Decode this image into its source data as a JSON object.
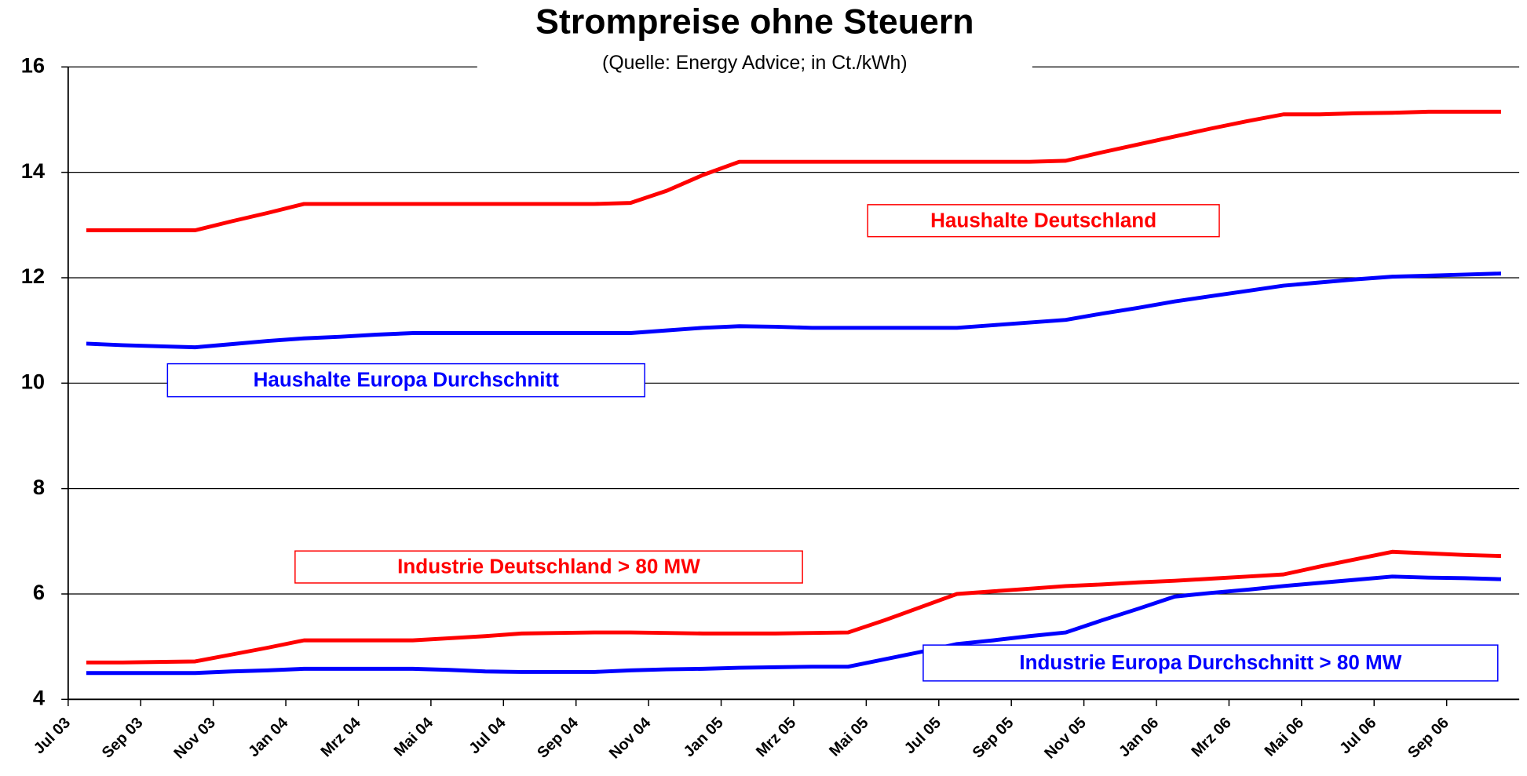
{
  "chart_data": {
    "type": "line",
    "title": "Strompreise ohne Steuern",
    "subtitle": "(Quelle: Energy Advice; in Ct./kWh)",
    "categories": [
      "Jul 03",
      null,
      "Sep 03",
      null,
      "Nov 03",
      null,
      "Jan 04",
      null,
      "Mrz 04",
      null,
      "Mai 04",
      null,
      "Jul 04",
      null,
      "Sep 04",
      null,
      "Nov 04",
      null,
      "Jan 05",
      null,
      "Mrz 05",
      null,
      "Mai 05",
      null,
      "Jul 05",
      null,
      "Sep 05",
      null,
      "Nov 05",
      null,
      "Jan 06",
      null,
      "Mrz 06",
      null,
      "Mai 06",
      null,
      "Jul 06",
      null,
      "Sep 06",
      null
    ],
    "ylim": [
      4,
      16
    ],
    "yticks": [
      4,
      6,
      8,
      10,
      12,
      14,
      16
    ],
    "grid": true,
    "series": [
      {
        "name": "Haushalte Deutschland",
        "color": "#ff0000",
        "values": [
          12.9,
          12.9,
          12.9,
          12.9,
          13.07,
          13.23,
          13.4,
          13.4,
          13.4,
          13.4,
          13.4,
          13.4,
          13.4,
          13.4,
          13.4,
          13.42,
          13.65,
          13.95,
          14.2,
          14.2,
          14.2,
          14.2,
          14.2,
          14.2,
          14.2,
          14.2,
          14.2,
          14.22,
          14.38,
          14.53,
          14.68,
          14.83,
          14.97,
          15.1,
          15.1,
          15.12,
          15.13,
          15.15,
          15.15,
          15.15
        ]
      },
      {
        "name": "Haushalte Europa Durchschnitt",
        "color": "#0000ff",
        "values": [
          10.75,
          10.72,
          10.7,
          10.68,
          10.74,
          10.8,
          10.85,
          10.88,
          10.92,
          10.95,
          10.95,
          10.95,
          10.95,
          10.95,
          10.95,
          10.95,
          11.0,
          11.05,
          11.08,
          11.07,
          11.05,
          11.05,
          11.05,
          11.05,
          11.05,
          11.1,
          11.15,
          11.2,
          11.32,
          11.43,
          11.55,
          11.65,
          11.75,
          11.85,
          11.91,
          11.97,
          12.02,
          12.04,
          12.06,
          12.08
        ]
      },
      {
        "name": "Industrie Deutschland > 80 MW",
        "color": "#ff0000",
        "values": [
          4.7,
          4.7,
          4.71,
          4.72,
          4.85,
          4.98,
          5.12,
          5.12,
          5.12,
          5.12,
          5.16,
          5.2,
          5.25,
          5.26,
          5.27,
          5.27,
          5.26,
          5.25,
          5.25,
          5.25,
          5.26,
          5.27,
          5.5,
          5.75,
          6.0,
          6.05,
          6.1,
          6.15,
          6.18,
          6.22,
          6.25,
          6.29,
          6.33,
          6.37,
          6.52,
          6.66,
          6.8,
          6.77,
          6.74,
          6.72
        ]
      },
      {
        "name": "Industrie Europa Durchschnitt > 80 MW",
        "color": "#0000ff",
        "values": [
          4.5,
          4.5,
          4.5,
          4.5,
          4.53,
          4.55,
          4.58,
          4.58,
          4.58,
          4.58,
          4.56,
          4.53,
          4.52,
          4.52,
          4.52,
          4.55,
          4.57,
          4.58,
          4.6,
          4.61,
          4.62,
          4.62,
          4.76,
          4.9,
          5.05,
          5.12,
          5.2,
          5.27,
          5.5,
          5.72,
          5.95,
          6.02,
          6.08,
          6.15,
          6.21,
          6.27,
          6.33,
          6.31,
          6.3,
          6.28
        ]
      }
    ]
  }
}
